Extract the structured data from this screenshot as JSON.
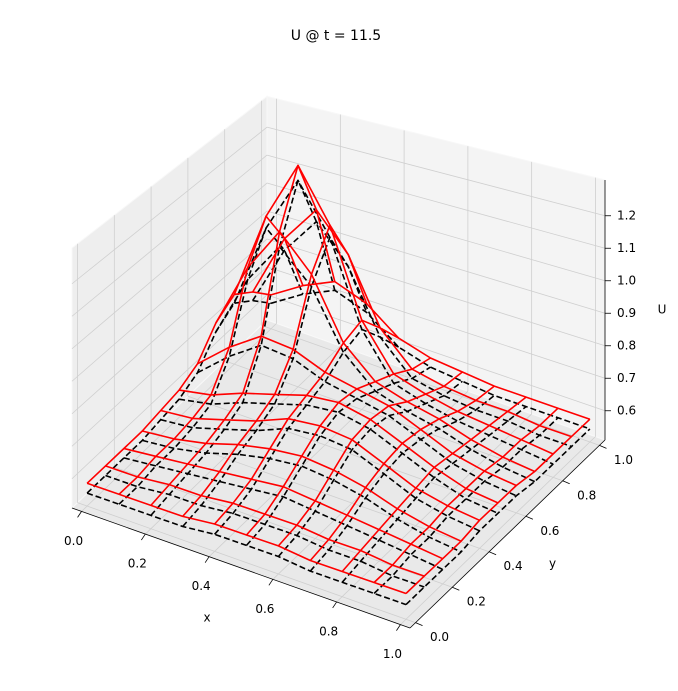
{
  "chart_data": {
    "type": "wireframe",
    "title": "U @ t = 11.5",
    "xlabel": "x",
    "ylabel": "y",
    "zlabel": "U",
    "x": [
      0,
      0.1,
      0.2,
      0.3,
      0.4,
      0.5,
      0.6,
      0.7,
      0.8,
      0.9,
      1
    ],
    "y": [
      0,
      0.1,
      0.2,
      0.3,
      0.4,
      0.5,
      0.6,
      0.7,
      0.8,
      0.9,
      1
    ],
    "xlim": [
      -0.03,
      1.03
    ],
    "ylim": [
      -0.03,
      1.03
    ],
    "zlim": [
      0.51,
      1.31
    ],
    "xticks": [
      {
        "value": 0,
        "label": "0.0"
      },
      0.2,
      0.4,
      0.6,
      0.8,
      {
        "value": 1,
        "label": "1.0"
      }
    ],
    "yticks": [
      {
        "value": 0,
        "label": "0.0"
      },
      0.2,
      0.4,
      0.6,
      0.8,
      {
        "value": 1,
        "label": "1.0"
      }
    ],
    "zticks": [
      0.6,
      0.7,
      0.8,
      0.9,
      {
        "value": 1,
        "label": "1.0"
      },
      1.1,
      1.2
    ],
    "grid": true,
    "series": [
      {
        "color": "#000000",
        "linestyle": "dashed",
        "z": [
          [
            0.55,
            0.55,
            0.55,
            0.55,
            0.56,
            0.56,
            0.56,
            0.55,
            0.55,
            0.55,
            0.55
          ],
          [
            0.55,
            0.55,
            0.56,
            0.56,
            0.57,
            0.57,
            0.57,
            0.56,
            0.56,
            0.55,
            0.55
          ],
          [
            0.55,
            0.56,
            0.57,
            0.58,
            0.59,
            0.6,
            0.59,
            0.58,
            0.57,
            0.56,
            0.55
          ],
          [
            0.55,
            0.56,
            0.58,
            0.61,
            0.63,
            0.64,
            0.63,
            0.61,
            0.58,
            0.56,
            0.55
          ],
          [
            0.56,
            0.57,
            0.6,
            0.63,
            0.67,
            0.68,
            0.67,
            0.63,
            0.59,
            0.57,
            0.56
          ],
          [
            0.57,
            0.59,
            0.63,
            0.66,
            0.69,
            0.7,
            0.68,
            0.64,
            0.6,
            0.57,
            0.56
          ],
          [
            0.6,
            0.69,
            0.76,
            0.75,
            0.71,
            0.69,
            0.67,
            0.63,
            0.59,
            0.57,
            0.56
          ],
          [
            0.68,
            0.89,
            1.03,
            0.93,
            0.75,
            0.66,
            0.63,
            0.61,
            0.58,
            0.56,
            0.55
          ],
          [
            0.72,
            1.01,
            1.2,
            1.04,
            0.77,
            0.63,
            0.6,
            0.58,
            0.57,
            0.56,
            0.55
          ],
          [
            0.67,
            0.88,
            1.01,
            0.89,
            0.69,
            0.59,
            0.57,
            0.56,
            0.56,
            0.55,
            0.55
          ],
          [
            0.6,
            0.67,
            0.72,
            0.68,
            0.6,
            0.57,
            0.56,
            0.55,
            0.55,
            0.55,
            0.55
          ]
        ]
      },
      {
        "color": "#ff0000",
        "linestyle": "solid",
        "z": [
          [
            0.58,
            0.58,
            0.58,
            0.58,
            0.59,
            0.59,
            0.59,
            0.58,
            0.58,
            0.58,
            0.58
          ],
          [
            0.58,
            0.58,
            0.59,
            0.59,
            0.6,
            0.6,
            0.6,
            0.59,
            0.59,
            0.58,
            0.58
          ],
          [
            0.58,
            0.59,
            0.6,
            0.61,
            0.62,
            0.63,
            0.62,
            0.61,
            0.6,
            0.59,
            0.58
          ],
          [
            0.58,
            0.59,
            0.61,
            0.64,
            0.66,
            0.67,
            0.66,
            0.64,
            0.61,
            0.59,
            0.58
          ],
          [
            0.59,
            0.6,
            0.63,
            0.66,
            0.7,
            0.71,
            0.7,
            0.66,
            0.62,
            0.6,
            0.59
          ],
          [
            0.6,
            0.62,
            0.66,
            0.69,
            0.72,
            0.73,
            0.71,
            0.67,
            0.63,
            0.6,
            0.59
          ],
          [
            0.63,
            0.72,
            0.79,
            0.78,
            0.74,
            0.72,
            0.7,
            0.66,
            0.62,
            0.6,
            0.59
          ],
          [
            0.71,
            0.93,
            1.08,
            0.97,
            0.78,
            0.69,
            0.66,
            0.64,
            0.61,
            0.59,
            0.58
          ],
          [
            0.75,
            1.05,
            1.25,
            1.08,
            0.8,
            0.66,
            0.63,
            0.61,
            0.6,
            0.59,
            0.58
          ],
          [
            0.7,
            0.92,
            1.05,
            0.93,
            0.72,
            0.62,
            0.6,
            0.59,
            0.59,
            0.58,
            0.58
          ],
          [
            0.63,
            0.7,
            0.75,
            0.71,
            0.63,
            0.6,
            0.59,
            0.58,
            0.58,
            0.58,
            0.58
          ]
        ]
      }
    ]
  }
}
